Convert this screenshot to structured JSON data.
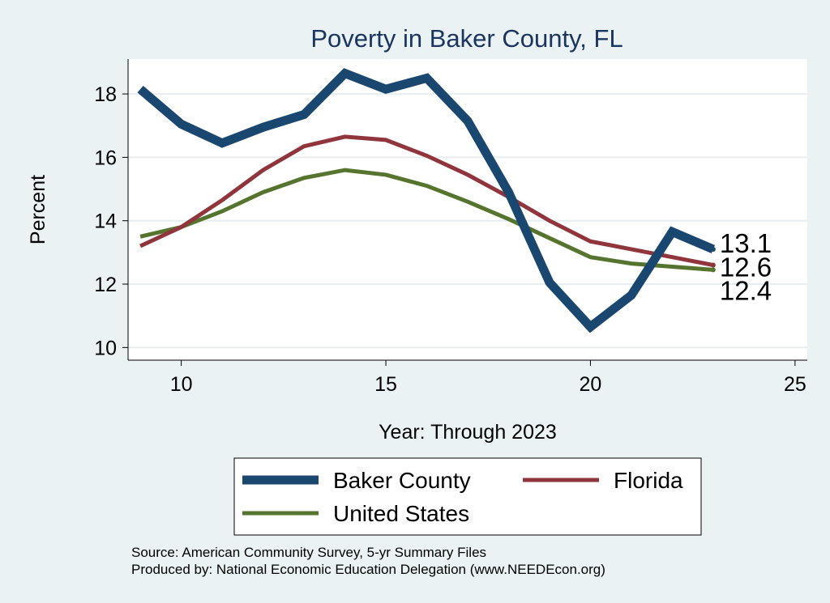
{
  "chart_data": {
    "type": "line",
    "title": "Poverty in Baker County, FL",
    "xlabel": "Year: Through 2023",
    "ylabel": "Percent",
    "xlim": [
      8.7,
      25.3
    ],
    "ylim": [
      9.6,
      19.1
    ],
    "xticks": [
      10,
      15,
      20,
      25
    ],
    "yticks": [
      10,
      12,
      14,
      16,
      18
    ],
    "grid": true,
    "legend_position": "bottom",
    "series": [
      {
        "name": "Baker County",
        "color": "#1a476f",
        "x": [
          9,
          10,
          11,
          12,
          13,
          14,
          15,
          16,
          17,
          18,
          19,
          20,
          21,
          22,
          23
        ],
        "y": [
          18.15,
          17.05,
          16.45,
          16.95,
          17.35,
          18.65,
          18.15,
          18.5,
          17.15,
          14.9,
          12.05,
          10.65,
          11.65,
          13.65,
          13.1
        ]
      },
      {
        "name": "Florida",
        "color": "#90353b",
        "x": [
          9,
          10,
          11,
          12,
          13,
          14,
          15,
          16,
          17,
          18,
          19,
          20,
          21,
          22,
          23
        ],
        "y": [
          13.2,
          13.8,
          14.65,
          15.6,
          16.35,
          16.65,
          16.55,
          16.05,
          15.45,
          14.75,
          14.0,
          13.35,
          13.1,
          12.85,
          12.6
        ]
      },
      {
        "name": "United States",
        "color": "#55752f",
        "x": [
          9,
          10,
          11,
          12,
          13,
          14,
          15,
          16,
          17,
          18,
          19,
          20,
          21,
          22,
          23
        ],
        "y": [
          13.5,
          13.8,
          14.3,
          14.9,
          15.35,
          15.6,
          15.45,
          15.1,
          14.6,
          14.05,
          13.45,
          12.85,
          12.65,
          12.55,
          12.45
        ]
      }
    ],
    "end_labels": [
      "13.1",
      "12.6",
      "12.4"
    ],
    "notes": [
      "Source: American Community Survey, 5-yr Summary Files",
      "Produced by: National Economic Education Delegation (www.NEEDEcon.org)"
    ]
  }
}
